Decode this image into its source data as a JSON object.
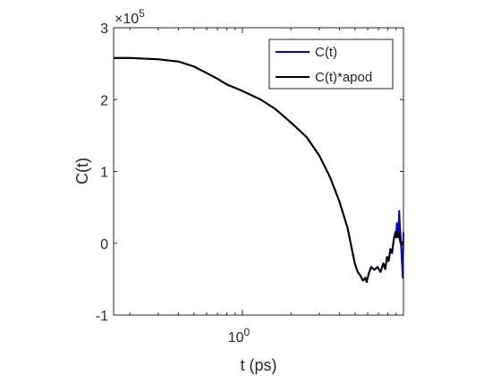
{
  "chart_data": {
    "type": "line",
    "xlabel": "t (ps)",
    "ylabel": "C(t)",
    "x_scale": "log",
    "xlim": [
      0.1584893,
      10
    ],
    "ylim": [
      -100000,
      300000
    ],
    "y_exponent_label": {
      "base": "×10",
      "exp": "5"
    },
    "xticks": [
      {
        "value": 1,
        "base": "10",
        "exp": "0"
      }
    ],
    "yticks": [
      {
        "value": -100000,
        "label": "-1"
      },
      {
        "value": 0,
        "label": "0"
      },
      {
        "value": 100000,
        "label": "1"
      },
      {
        "value": 200000,
        "label": "2"
      },
      {
        "value": 300000,
        "label": "3"
      }
    ],
    "grid": false,
    "legend": {
      "position": "top-right"
    },
    "series": [
      {
        "name": "C(t)",
        "color": "#0000cc",
        "x": [
          0.159,
          0.2,
          0.3,
          0.4,
          0.5,
          0.6,
          0.7,
          0.8,
          1.0,
          1.3,
          1.6,
          2.0,
          2.5,
          3.0,
          3.5,
          4.0,
          4.5,
          4.8,
          5.0,
          5.2,
          5.4,
          5.6,
          5.8,
          5.9,
          6.1,
          6.3,
          6.6,
          6.9,
          7.2,
          7.5,
          7.7,
          7.9,
          8.1,
          8.3,
          8.5,
          8.7,
          8.9,
          9.0,
          9.1,
          9.2,
          9.3,
          9.4,
          9.5,
          9.6,
          9.7,
          9.8,
          9.9,
          10.0
        ],
        "y": [
          258000,
          258000,
          256000,
          253000,
          246000,
          237000,
          229000,
          221000,
          212000,
          200000,
          187000,
          168000,
          148000,
          122000,
          92000,
          58000,
          21000,
          -10000,
          -29000,
          -40000,
          -45000,
          -52000,
          -48000,
          -54000,
          -41000,
          -33000,
          -37000,
          -33000,
          -40000,
          -28000,
          -36000,
          -19000,
          -25000,
          -8000,
          -14000,
          5000,
          16000,
          9000,
          28000,
          19000,
          14000,
          45000,
          24000,
          10000,
          -10000,
          -28000,
          -48000,
          15000
        ]
      },
      {
        "name": "C(t)*apod",
        "color": "#000000",
        "x": [
          0.159,
          0.2,
          0.3,
          0.4,
          0.5,
          0.6,
          0.7,
          0.8,
          1.0,
          1.3,
          1.6,
          2.0,
          2.5,
          3.0,
          3.5,
          4.0,
          4.5,
          4.8,
          5.0,
          5.2,
          5.4,
          5.6,
          5.8,
          5.9,
          6.1,
          6.3,
          6.6,
          6.9,
          7.2,
          7.5,
          7.7,
          7.9,
          8.1,
          8.3,
          8.5,
          8.7,
          8.9,
          9.0,
          9.1,
          9.2,
          9.3,
          9.4,
          9.5,
          9.6,
          9.7,
          9.8,
          9.9,
          10.0
        ],
        "y": [
          258000,
          258000,
          256000,
          253000,
          246000,
          237000,
          229000,
          221000,
          212000,
          200000,
          187000,
          168000,
          148000,
          122000,
          92000,
          58000,
          21000,
          -10000,
          -29000,
          -40000,
          -45000,
          -52000,
          -48000,
          -54000,
          -41000,
          -33000,
          -37000,
          -33000,
          -40000,
          -28000,
          -36000,
          -19000,
          -24000,
          -8000,
          -12000,
          5000,
          14000,
          8000,
          18000,
          12000,
          8000,
          14000,
          4000,
          0,
          -2000,
          0,
          2000,
          3000
        ]
      }
    ]
  }
}
